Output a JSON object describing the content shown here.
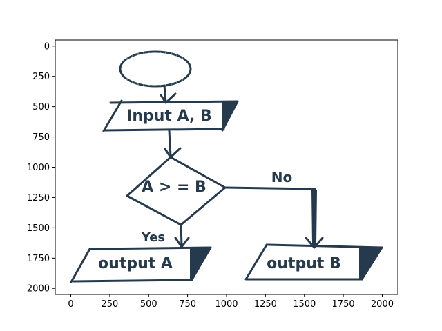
{
  "colors": {
    "ink": "#263a4d",
    "axes": "#000000",
    "background": "#ffffff"
  },
  "axes": {
    "x_ticks": [
      "0",
      "250",
      "500",
      "750",
      "1000",
      "1250",
      "1500",
      "1750",
      "2000"
    ],
    "y_ticks": [
      "0",
      "250",
      "500",
      "750",
      "1000",
      "1250",
      "1500",
      "1750",
      "2000"
    ],
    "xlim": [
      -100,
      2100
    ],
    "ylim": [
      2050,
      -50
    ]
  },
  "flowchart": {
    "start_label": "",
    "input_label": "Input A, B",
    "decision_label": "A > = B",
    "no_label": "No",
    "yes_label": "Yes",
    "output_a_label": "output A",
    "output_b_label": "output B"
  }
}
